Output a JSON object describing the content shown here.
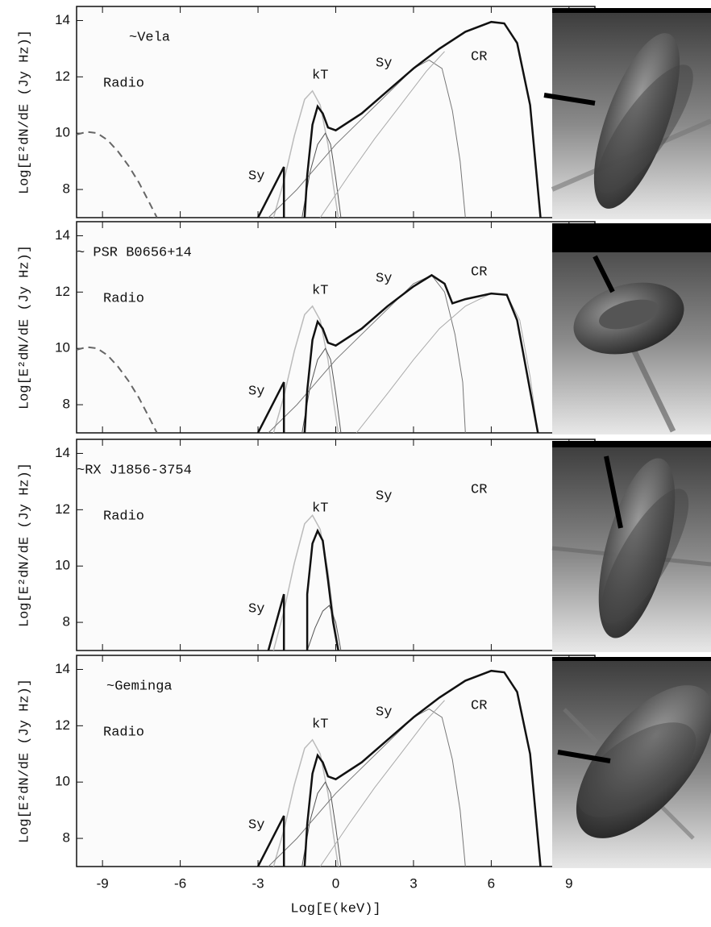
{
  "chart_data": [
    {
      "type": "line",
      "xlim": [
        -10,
        10
      ],
      "ylim": [
        7,
        14.5
      ],
      "xticks": [
        -9,
        -6,
        -3,
        0,
        3,
        6,
        9
      ],
      "yticks": [
        8,
        10,
        12,
        14
      ],
      "ylabel": "Log[E²dN/dE (Jy Hz)]",
      "annotations": [
        "~Vela",
        "Radio",
        "kT",
        "Sy",
        "Sy",
        "CR"
      ],
      "series": [
        {
          "color": "#666666",
          "width": 2,
          "style": "dashed",
          "x": [
            -10,
            -9.6,
            -9.2,
            -8.8,
            -8.4,
            -8,
            -7.6,
            -7.2,
            -6.9
          ],
          "values": [
            9.95,
            10.05,
            10.0,
            9.75,
            9.35,
            8.85,
            8.25,
            7.55,
            7.0
          ]
        },
        {
          "color": "#bbbbbb",
          "width": 1.5,
          "style": "solid",
          "x": [
            -2.4,
            -2,
            -1.6,
            -1.2,
            -0.9,
            -0.6,
            -0.3,
            -0.1,
            0.1
          ],
          "values": [
            7,
            8.3,
            9.9,
            11.2,
            11.5,
            11.0,
            9.6,
            8.2,
            7
          ]
        },
        {
          "color": "#555555",
          "width": 1,
          "style": "solid",
          "x": [
            -1.3,
            -1,
            -0.7,
            -0.4,
            -0.2,
            0,
            0.2
          ],
          "values": [
            7,
            8.6,
            9.6,
            10.0,
            9.6,
            8.4,
            7
          ]
        },
        {
          "color": "#777777",
          "width": 1,
          "style": "solid",
          "x": [
            -2.6,
            -1.5,
            0,
            1,
            2,
            3,
            3.6,
            4.1,
            4.5,
            4.8,
            5
          ],
          "values": [
            7,
            8.0,
            9.6,
            10.5,
            11.4,
            12.3,
            12.6,
            12.3,
            10.8,
            9,
            7
          ]
        },
        {
          "color": "#aaaaaa",
          "width": 1,
          "style": "solid",
          "x": [
            -0.6,
            0.5,
            1.5,
            2.5,
            3.5,
            4.2
          ],
          "values": [
            7,
            8.5,
            9.8,
            11,
            12.2,
            12.9
          ]
        },
        {
          "color": "#111111",
          "width": 2.5,
          "style": "solid",
          "x": [
            -3,
            -2.5,
            -2,
            -2,
            -1.6,
            -1.2,
            -1.1,
            -0.9,
            -0.7,
            -0.5,
            -0.3,
            0,
            1,
            2,
            3,
            4,
            5,
            6,
            6.5,
            7,
            7.5,
            7.9
          ],
          "values": [
            7,
            7.9,
            8.8,
            7,
            null,
            7,
            8.5,
            10.3,
            10.95,
            10.7,
            10.2,
            10.1,
            10.7,
            11.5,
            12.3,
            13,
            13.6,
            13.95,
            13.9,
            13.2,
            11,
            7
          ]
        }
      ]
    },
    {
      "type": "line",
      "xlim": [
        -10,
        10
      ],
      "ylim": [
        7,
        14.5
      ],
      "xticks": [
        -9,
        -6,
        -3,
        0,
        3,
        6,
        9
      ],
      "yticks": [
        8,
        10,
        12,
        14
      ],
      "ylabel": "Log[E²dN/dE (Jy Hz)]",
      "annotations": [
        "~ PSR B0656+14",
        "Radio",
        "kT",
        "Sy",
        "Sy",
        "CR"
      ],
      "series": [
        {
          "color": "#666666",
          "width": 2,
          "style": "dashed",
          "x": [
            -10,
            -9.6,
            -9.2,
            -8.8,
            -8.4,
            -8,
            -7.6,
            -7.2,
            -6.9
          ],
          "values": [
            9.95,
            10.05,
            10.0,
            9.75,
            9.35,
            8.85,
            8.25,
            7.55,
            7.0
          ]
        },
        {
          "color": "#bbbbbb",
          "width": 1.5,
          "style": "solid",
          "x": [
            -2.4,
            -2,
            -1.6,
            -1.2,
            -0.9,
            -0.6,
            -0.3,
            -0.1,
            0.1
          ],
          "values": [
            7,
            8.3,
            9.9,
            11.2,
            11.5,
            11.0,
            9.6,
            8.2,
            7
          ]
        },
        {
          "color": "#555555",
          "width": 1,
          "style": "solid",
          "x": [
            -1.3,
            -1,
            -0.7,
            -0.4,
            -0.2,
            0,
            0.2
          ],
          "values": [
            7,
            8.6,
            9.6,
            10.0,
            9.6,
            8.4,
            7
          ]
        },
        {
          "color": "#777777",
          "width": 1,
          "style": "solid",
          "x": [
            -2.6,
            -1.5,
            0,
            1,
            2,
            3,
            3.7,
            4.2,
            4.6,
            4.9,
            5
          ],
          "values": [
            7,
            8,
            9.6,
            10.5,
            11.4,
            12.3,
            12.6,
            12,
            10.5,
            8.8,
            7
          ]
        },
        {
          "color": "#aaaaaa",
          "width": 1,
          "style": "solid",
          "x": [
            0.8,
            2,
            3,
            4,
            5,
            6,
            6.6,
            7.1,
            7.5,
            7.8
          ],
          "values": [
            7,
            8.4,
            9.6,
            10.7,
            11.5,
            11.95,
            11.9,
            11,
            9,
            7
          ]
        },
        {
          "color": "#111111",
          "width": 2.5,
          "style": "solid",
          "x": [
            -3,
            -2.5,
            -2,
            -2,
            -1.6,
            -1.2,
            -1.1,
            -0.9,
            -0.7,
            -0.5,
            -0.3,
            0,
            1,
            2,
            3,
            3.7,
            4.2,
            4.5,
            5,
            6,
            6.6,
            7,
            7.4,
            7.8
          ],
          "values": [
            7,
            7.9,
            8.8,
            7,
            null,
            7,
            8.5,
            10.3,
            10.95,
            10.7,
            10.2,
            10.1,
            10.7,
            11.5,
            12.2,
            12.6,
            12.3,
            11.6,
            11.75,
            11.95,
            11.9,
            11,
            9,
            7
          ]
        }
      ]
    },
    {
      "type": "line",
      "xlim": [
        -10,
        10
      ],
      "ylim": [
        7,
        14.5
      ],
      "xticks": [
        -9,
        -6,
        -3,
        0,
        3,
        6,
        9
      ],
      "yticks": [
        8,
        10,
        12,
        14
      ],
      "ylabel": "Log[E²dN/dE (Jy Hz)]",
      "annotations": [
        "~RX J1856-3754",
        "Radio",
        "kT",
        "Sy",
        "Sy",
        "CR"
      ],
      "series": [
        {
          "color": "#bbbbbb",
          "width": 1.5,
          "style": "solid",
          "x": [
            -2.4,
            -2,
            -1.6,
            -1.2,
            -0.9,
            -0.6,
            -0.3,
            -0.1,
            0.1
          ],
          "values": [
            7,
            8.4,
            10.1,
            11.5,
            11.8,
            11.3,
            9.8,
            8.3,
            7
          ]
        },
        {
          "color": "#555555",
          "width": 1,
          "style": "solid",
          "x": [
            -1.1,
            -0.8,
            -0.5,
            -0.25,
            0,
            0.2
          ],
          "values": [
            7,
            7.8,
            8.4,
            8.6,
            8.0,
            7
          ]
        },
        {
          "color": "#111111",
          "width": 2.5,
          "style": "solid",
          "x": [
            -2.6,
            -2.3,
            -2,
            -2,
            -1.6,
            -1.1,
            -1.1,
            -0.9,
            -0.7,
            -0.5,
            -0.3,
            -0.1,
            0.1
          ],
          "values": [
            7,
            8,
            9,
            7,
            null,
            7,
            9,
            10.8,
            11.25,
            10.9,
            9.5,
            8,
            7
          ]
        }
      ]
    },
    {
      "type": "line",
      "xlim": [
        -10,
        10
      ],
      "ylim": [
        7,
        14.5
      ],
      "xticks": [
        -9,
        -6,
        -3,
        0,
        3,
        6,
        9
      ],
      "yticks": [
        8,
        10,
        12,
        14
      ],
      "ylabel": "Log[E²dN/dE (Jy Hz)]",
      "xlabel": "Log[E(keV)]",
      "annotations": [
        "~Geminga",
        "Radio",
        "kT",
        "Sy",
        "Sy",
        "CR"
      ],
      "series": [
        {
          "color": "#bbbbbb",
          "width": 1.5,
          "style": "solid",
          "x": [
            -2.4,
            -2,
            -1.6,
            -1.2,
            -0.9,
            -0.6,
            -0.3,
            -0.1,
            0.1
          ],
          "values": [
            7,
            8.3,
            9.9,
            11.2,
            11.5,
            11.0,
            9.6,
            8.2,
            7
          ]
        },
        {
          "color": "#555555",
          "width": 1,
          "style": "solid",
          "x": [
            -1.3,
            -1,
            -0.7,
            -0.4,
            -0.2,
            0,
            0.2
          ],
          "values": [
            7,
            8.6,
            9.6,
            10.0,
            9.6,
            8.4,
            7
          ]
        },
        {
          "color": "#777777",
          "width": 1,
          "style": "solid",
          "x": [
            -2.6,
            -1.5,
            0,
            1,
            2,
            3,
            3.6,
            4.1,
            4.5,
            4.8,
            5
          ],
          "values": [
            7,
            8.0,
            9.6,
            10.5,
            11.4,
            12.3,
            12.6,
            12.3,
            10.8,
            9,
            7
          ]
        },
        {
          "color": "#aaaaaa",
          "width": 1,
          "style": "solid",
          "x": [
            -0.6,
            0.5,
            1.5,
            2.5,
            3.5,
            4.2
          ],
          "values": [
            7,
            8.5,
            9.8,
            11,
            12.2,
            12.9
          ]
        },
        {
          "color": "#111111",
          "width": 2.5,
          "style": "solid",
          "x": [
            -3,
            -2.5,
            -2,
            -2,
            -1.6,
            -1.2,
            -1.1,
            -0.9,
            -0.7,
            -0.5,
            -0.3,
            0,
            1,
            2,
            3,
            4,
            5,
            6,
            6.5,
            7,
            7.5,
            7.9
          ],
          "values": [
            7,
            7.9,
            8.8,
            7,
            null,
            7,
            8.5,
            10.3,
            10.95,
            10.7,
            10.2,
            10.1,
            10.7,
            11.5,
            12.3,
            13,
            13.6,
            13.95,
            13.9,
            13.2,
            11,
            7
          ]
        }
      ]
    }
  ]
}
